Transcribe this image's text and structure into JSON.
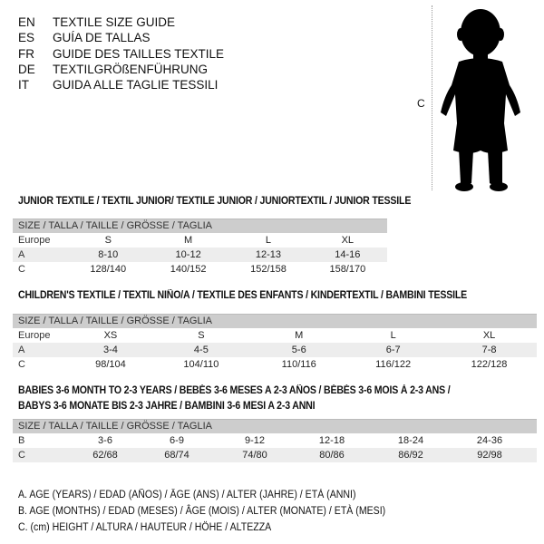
{
  "languages": [
    {
      "code": "EN",
      "text": "TEXTILE SIZE GUIDE"
    },
    {
      "code": "ES",
      "text": "GUÍA DE TALLAS"
    },
    {
      "code": "FR",
      "text": "GUIDE DES TAILLES TEXTILE"
    },
    {
      "code": "DE",
      "text": "TEXTILGRÖßENFÜHRUNG"
    },
    {
      "code": "IT",
      "text": "GUIDA ALLE TAGLIE TESSILI"
    }
  ],
  "figure": {
    "label": "C"
  },
  "header_label": "SIZE / TALLA / TAILLE / GRÖSSE / TAGLIA",
  "junior": {
    "title": "JUNIOR TEXTILE / TEXTIL JUNIOR/ TEXTILE JUNIOR / JUNIORTEXTIL / JUNIOR TESSILE",
    "rows": [
      {
        "label": "Europe",
        "values": [
          "S",
          "M",
          "L",
          "XL"
        ]
      },
      {
        "label": "A",
        "values": [
          "8-10",
          "10-12",
          "12-13",
          "14-16"
        ]
      },
      {
        "label": "C",
        "values": [
          "128/140",
          "140/152",
          "152/158",
          "158/170"
        ]
      }
    ]
  },
  "children": {
    "title": "CHILDREN'S TEXTILE / TEXTIL NIÑO/A / TEXTILE DES ENFANTS / KINDERTEXTIL / BAMBINI TESSILE",
    "rows": [
      {
        "label": "Europe",
        "values": [
          "XS",
          "S",
          "M",
          "L",
          "XL"
        ]
      },
      {
        "label": "A",
        "values": [
          "3-4",
          "4-5",
          "5-6",
          "6-7",
          "7-8"
        ]
      },
      {
        "label": "C",
        "values": [
          "98/104",
          "104/110",
          "110/116",
          "116/122",
          "122/128"
        ]
      }
    ]
  },
  "babies": {
    "title_line1": "BABIES 3-6 MONTH TO 2-3 YEARS / BEBÉS 3-6 MESES A 2-3 AÑOS / BÉBÉS 3-6 MOIS À 2-3 ANS /",
    "title_line2": "BABYS 3-6 MONATE BIS 2-3 JAHRE / BAMBINI 3-6 MESI A 2-3 ANNI",
    "rows": [
      {
        "label": "B",
        "values": [
          "3-6",
          "6-9",
          "9-12",
          "12-18",
          "18-24",
          "24-36"
        ]
      },
      {
        "label": "C",
        "values": [
          "62/68",
          "68/74",
          "74/80",
          "80/86",
          "86/92",
          "92/98"
        ]
      }
    ]
  },
  "legend": [
    "A. AGE (YEARS) / EDAD (AÑOS) / ÂGE (ANS) / ALTER (JAHRE) / ETÀ (ANNI)",
    "B. AGE (MONTHS) / EDAD (MESES) / ÂGE (MOIS) / ALTER (MONATE) / ETÀ (MESI)",
    "C. (cm) HEIGHT / ALTURA / HAUTEUR / HÖHE / ALTEZZA"
  ]
}
